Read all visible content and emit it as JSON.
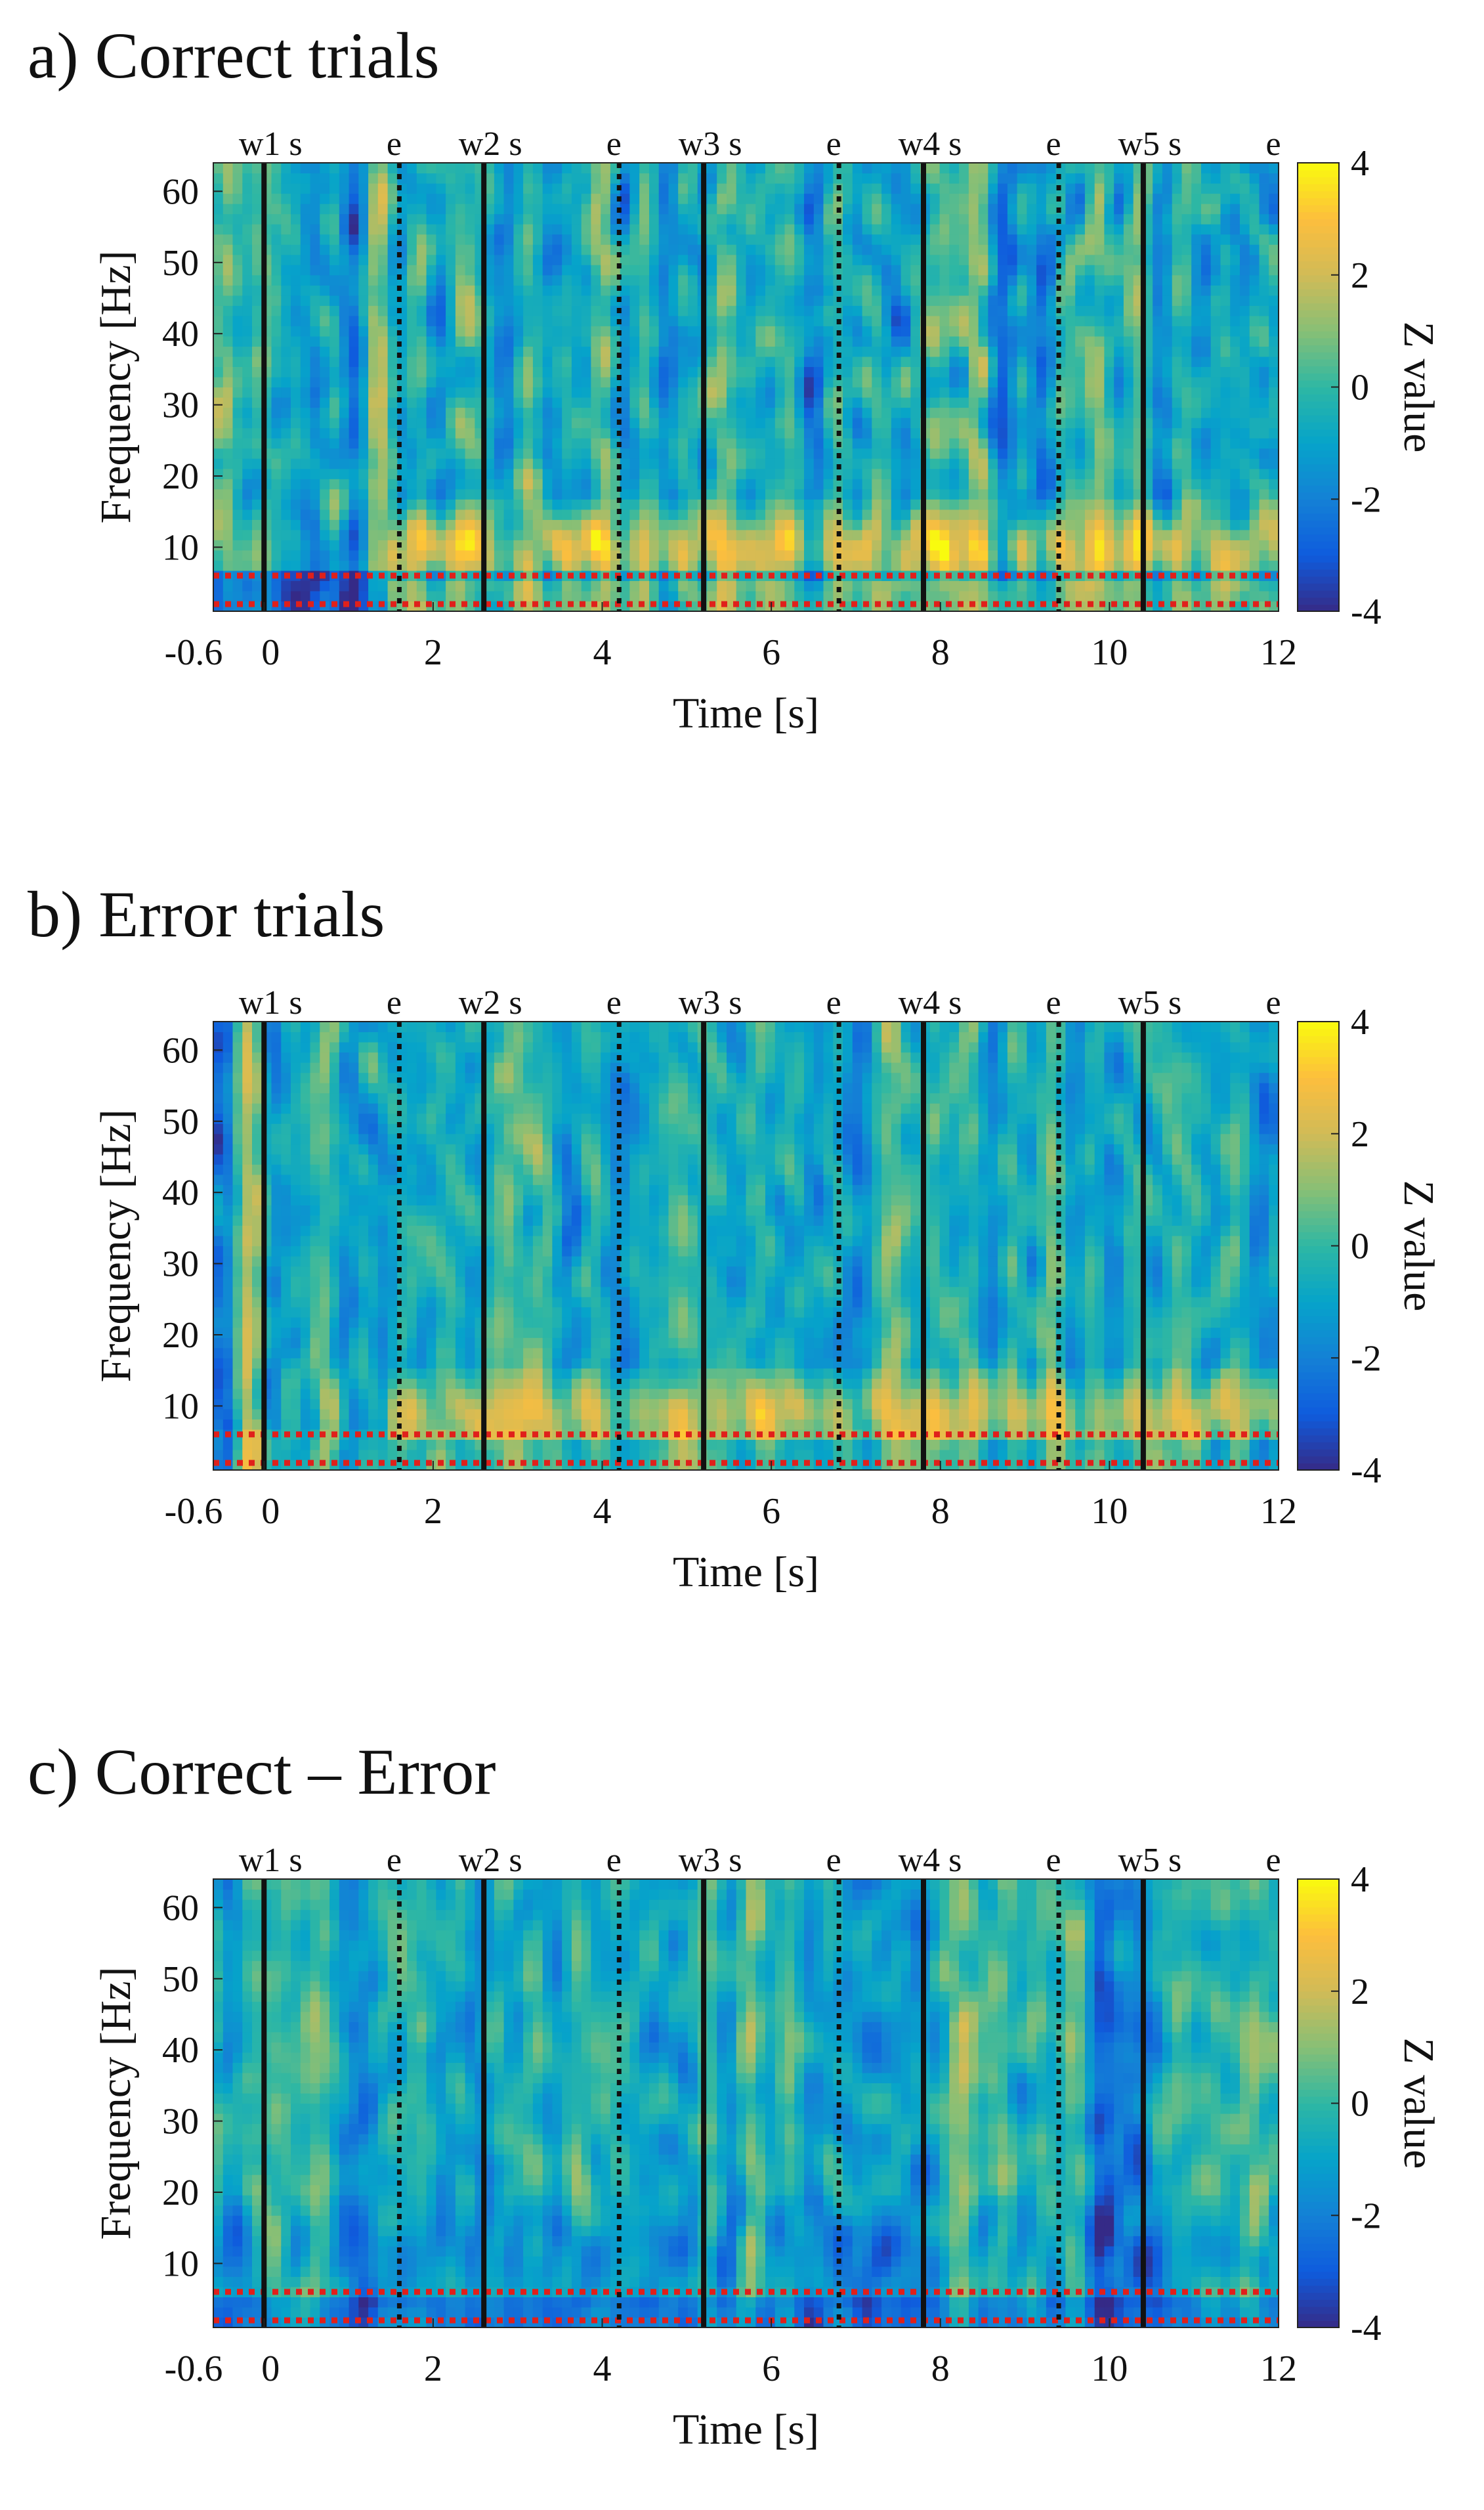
{
  "chart_data": [
    {
      "type": "heatmap",
      "title": "a) Correct trials",
      "condition": "correct",
      "xlabel": "Time [s]",
      "ylabel": "Frequency [Hz]",
      "colorbar_label": "Z value",
      "xlim": [
        -0.6,
        12
      ],
      "ylim": [
        1,
        64
      ],
      "zlim": [
        -4,
        4
      ],
      "xticks": [
        "-0.6",
        "0",
        "2",
        "4",
        "6",
        "8",
        "10",
        "12"
      ],
      "xtick_values": [
        -0.6,
        0,
        2,
        4,
        6,
        8,
        10,
        12
      ],
      "yticks": [
        "10",
        "20",
        "30",
        "40",
        "50",
        "60"
      ],
      "ytick_values": [
        10,
        20,
        30,
        40,
        50,
        60
      ],
      "cticks": [
        "4",
        "2",
        "0",
        "-2",
        "-4"
      ],
      "ctick_values": [
        4,
        2,
        0,
        -2,
        -4
      ],
      "colormap": "parula"
    },
    {
      "type": "heatmap",
      "title": "b) Error trials",
      "condition": "error",
      "xlabel": "Time [s]",
      "ylabel": "Frequency [Hz]",
      "colorbar_label": "Z value",
      "xlim": [
        -0.6,
        12
      ],
      "ylim": [
        1,
        64
      ],
      "zlim": [
        -4,
        4
      ],
      "xticks": [
        "-0.6",
        "0",
        "2",
        "4",
        "6",
        "8",
        "10",
        "12"
      ],
      "xtick_values": [
        -0.6,
        0,
        2,
        4,
        6,
        8,
        10,
        12
      ],
      "yticks": [
        "10",
        "20",
        "30",
        "40",
        "50",
        "60"
      ],
      "ytick_values": [
        10,
        20,
        30,
        40,
        50,
        60
      ],
      "cticks": [
        "4",
        "2",
        "0",
        "-2",
        "-4"
      ],
      "ctick_values": [
        4,
        2,
        0,
        -2,
        -4
      ],
      "colormap": "parula"
    },
    {
      "type": "heatmap",
      "title": "c) Correct – Error",
      "condition": "difference",
      "xlabel": "Time [s]",
      "ylabel": "Frequency [Hz]",
      "colorbar_label": "Z value",
      "xlim": [
        -0.6,
        12
      ],
      "ylim": [
        1,
        64
      ],
      "zlim": [
        -4,
        4
      ],
      "xticks": [
        "-0.6",
        "0",
        "2",
        "4",
        "6",
        "8",
        "10",
        "12"
      ],
      "xtick_values": [
        -0.6,
        0,
        2,
        4,
        6,
        8,
        10,
        12
      ],
      "yticks": [
        "10",
        "20",
        "30",
        "40",
        "50",
        "60"
      ],
      "ytick_values": [
        10,
        20,
        30,
        40,
        50,
        60
      ],
      "cticks": [
        "4",
        "2",
        "0",
        "-2",
        "-4"
      ],
      "ctick_values": [
        4,
        2,
        0,
        -2,
        -4
      ],
      "colormap": "parula"
    }
  ],
  "event_markers": [
    {
      "time": 0,
      "style": "solid",
      "label": "w1 s"
    },
    {
      "time": 1.6,
      "style": "dotted",
      "label": "e"
    },
    {
      "time": 2.6,
      "style": "solid",
      "label": "w2 s"
    },
    {
      "time": 4.2,
      "style": "dotted",
      "label": "e"
    },
    {
      "time": 5.2,
      "style": "solid",
      "label": "w3 s"
    },
    {
      "time": 6.8,
      "style": "dotted",
      "label": "e"
    },
    {
      "time": 7.8,
      "style": "solid",
      "label": "w4 s"
    },
    {
      "time": 9.4,
      "style": "dotted",
      "label": "e"
    },
    {
      "time": 10.4,
      "style": "solid",
      "label": "w5 s"
    },
    {
      "time": 12,
      "style": "none",
      "label": "e"
    }
  ],
  "frequency_band_lines_hz": [
    2,
    6
  ],
  "colors": {
    "band_line": "#e0201b",
    "marker_line": "#111111"
  }
}
